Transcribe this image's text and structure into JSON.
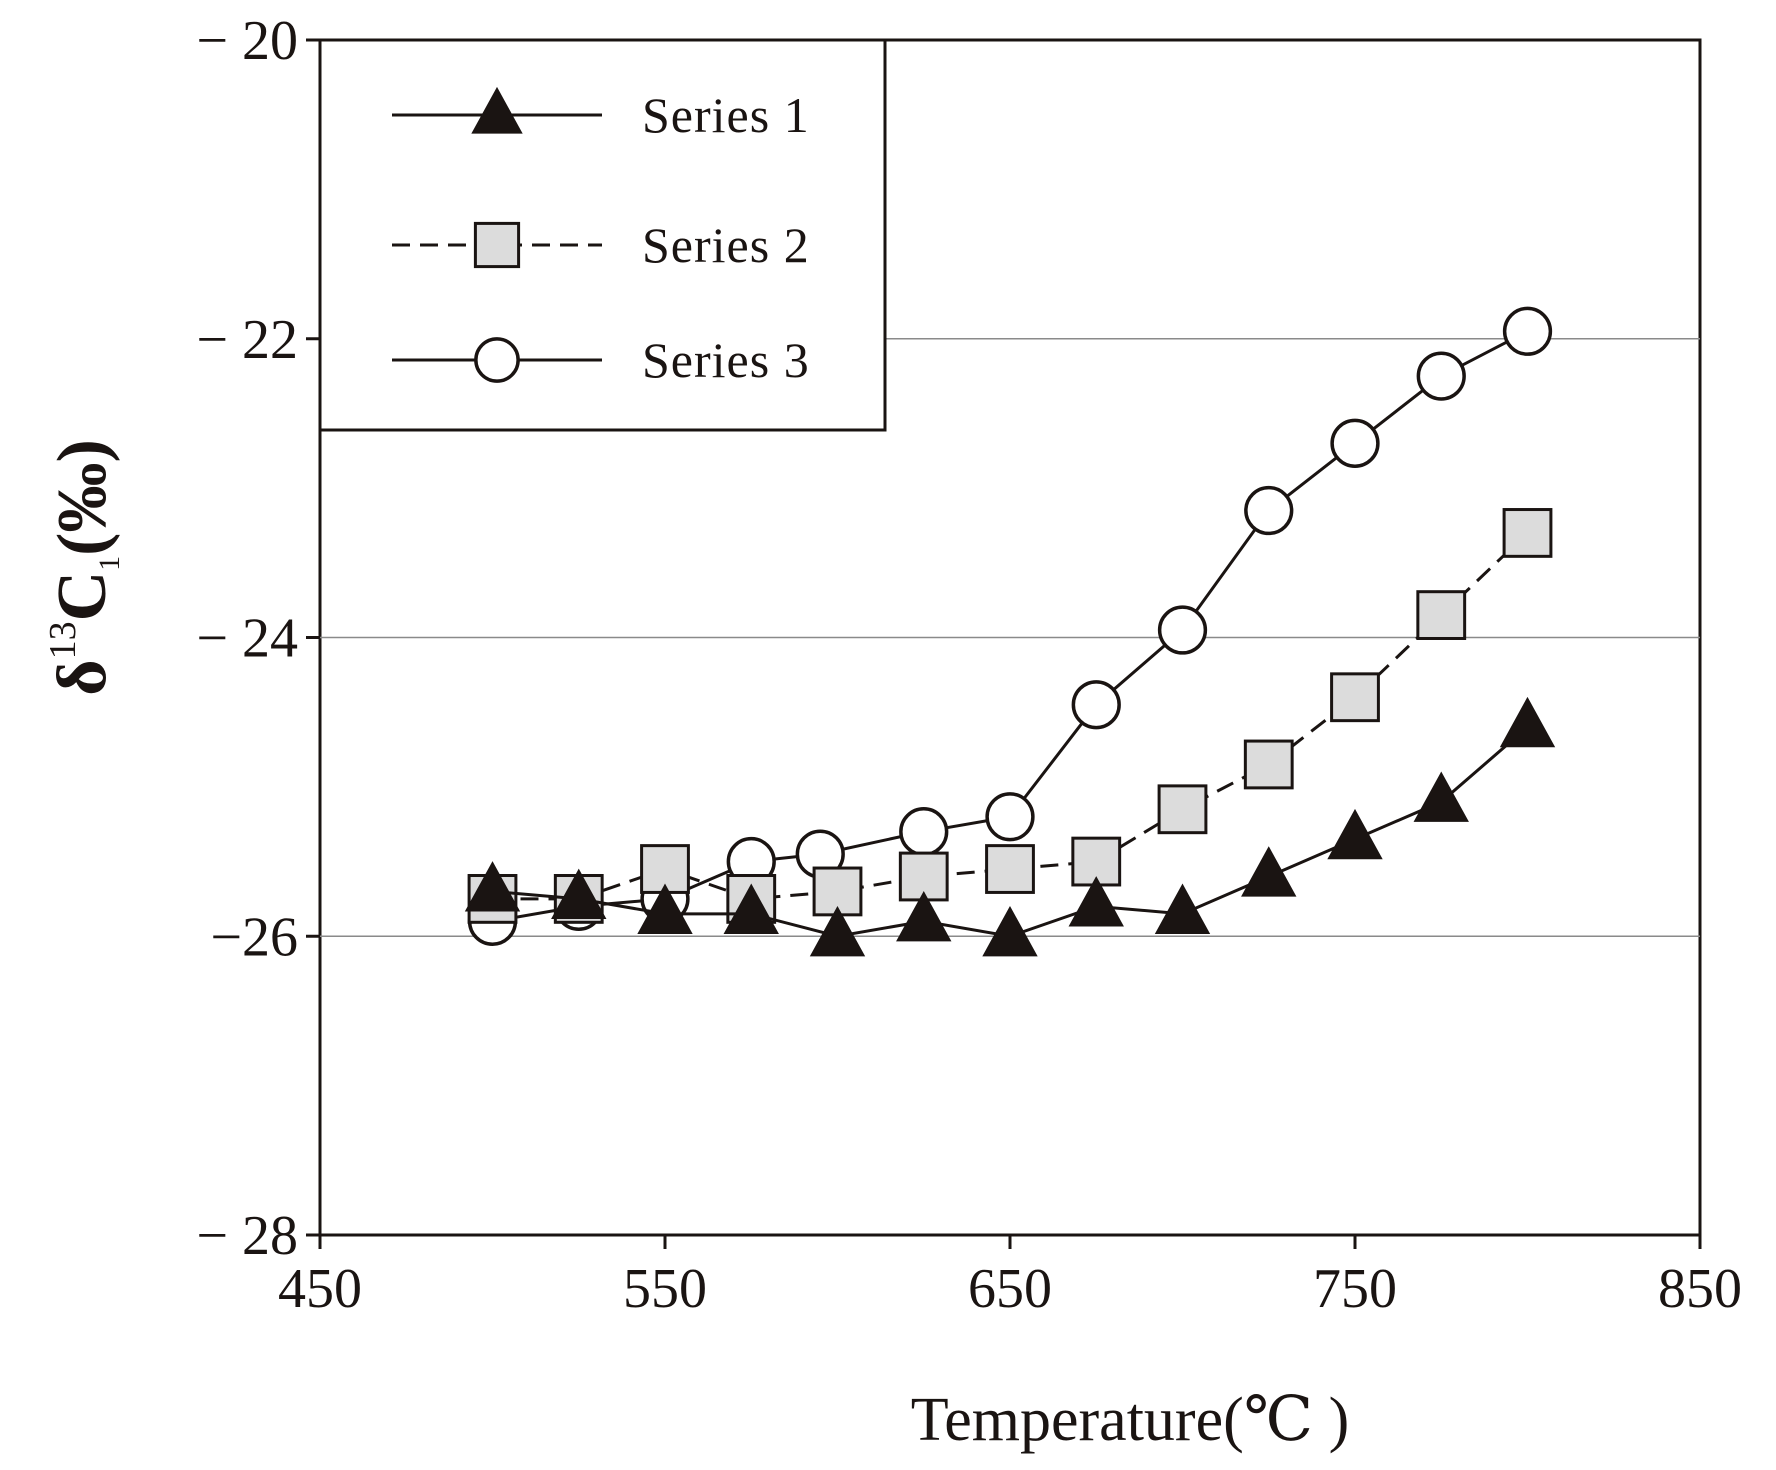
{
  "chart_data": {
    "type": "line",
    "title": "",
    "xlabel": "Temperature(℃ )",
    "ylabel_parts": {
      "delta": "δ",
      "sup": "13",
      "c": "C",
      "sub": "1",
      "unit": "(‰)"
    },
    "xlim": [
      450,
      850
    ],
    "ylim": [
      -28,
      -20
    ],
    "x_ticks": [
      450,
      550,
      650,
      750,
      850
    ],
    "x_tick_labels": [
      "450",
      "550",
      "650",
      "750",
      "850"
    ],
    "y_ticks": [
      -20,
      -22,
      -24,
      -26,
      -28
    ],
    "y_tick_labels": [
      "− 20",
      "− 22",
      "− 24",
      "−26",
      "− 28"
    ],
    "gridlines_y": [
      -22,
      -24,
      -26
    ],
    "legend_position": "top-left",
    "series": [
      {
        "name": "Series 1",
        "marker": "triangle",
        "line": "solid",
        "x": [
          500,
          525,
          550,
          575,
          600,
          625,
          650,
          675,
          700,
          725,
          750,
          775,
          800
        ],
        "y": [
          -25.7,
          -25.75,
          -25.85,
          -25.85,
          -26.0,
          -25.9,
          -26.0,
          -25.8,
          -25.85,
          -25.6,
          -25.35,
          -25.1,
          -24.6
        ]
      },
      {
        "name": "Series 2",
        "marker": "square",
        "line": "dashed",
        "x": [
          500,
          525,
          550,
          575,
          600,
          625,
          650,
          675,
          700,
          725,
          750,
          775,
          800
        ],
        "y": [
          -25.75,
          -25.75,
          -25.55,
          -25.75,
          -25.7,
          -25.6,
          -25.55,
          -25.5,
          -25.15,
          -24.85,
          -24.4,
          -23.85,
          -23.3
        ]
      },
      {
        "name": "Series 3",
        "marker": "circle",
        "line": "solid",
        "x": [
          500,
          525,
          550,
          575,
          595,
          625,
          650,
          675,
          700,
          725,
          750,
          775,
          800
        ],
        "y": [
          -25.9,
          -25.8,
          -25.75,
          -25.5,
          -25.45,
          -25.3,
          -25.2,
          -24.45,
          -23.95,
          -23.15,
          -22.7,
          -22.25,
          -21.95
        ]
      }
    ],
    "colors": {
      "axis": "#1a1412",
      "grid": "#8a8a8a",
      "triangle_fill": "#1a1412",
      "square_fill": "#dcdcdc",
      "circle_fill": "#ffffff"
    }
  }
}
